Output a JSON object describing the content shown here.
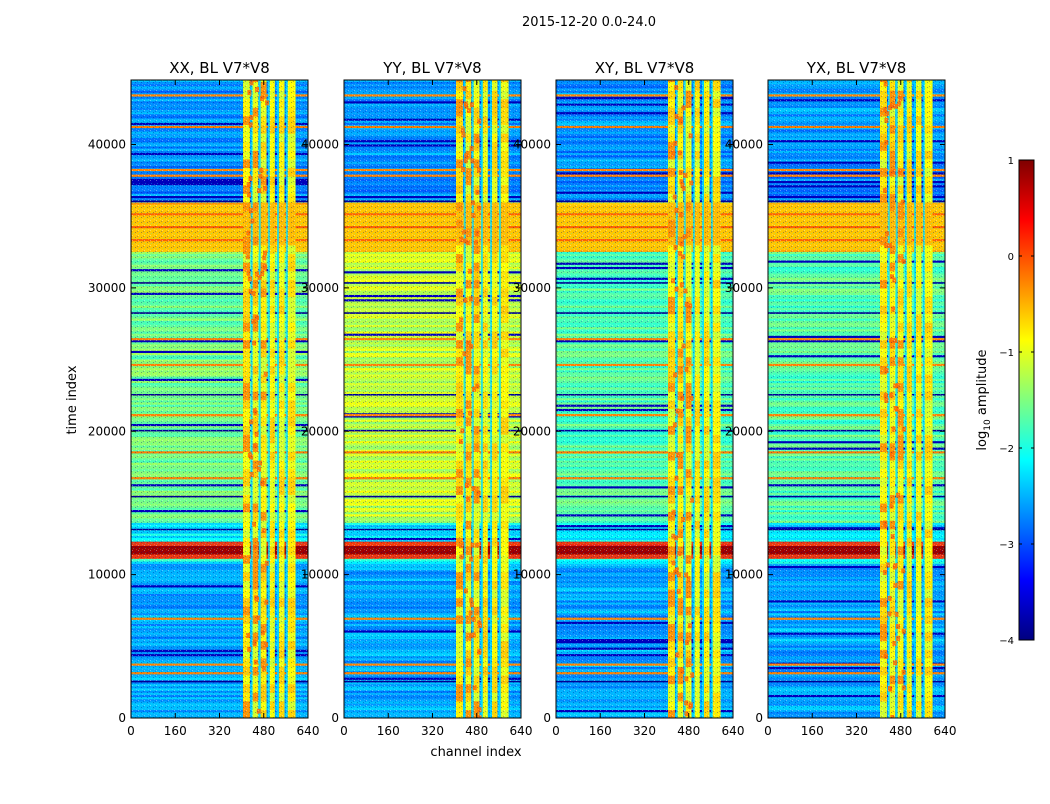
{
  "chart_data": {
    "type": "heatmap",
    "suptitle": "2015-12-20 0.0-24.0",
    "xlabel": "channel index",
    "ylabel": "time index",
    "xlim": [
      0,
      640
    ],
    "ylim": [
      0,
      44500
    ],
    "xticks": [
      0,
      160,
      320,
      480,
      640
    ],
    "yticks": [
      0,
      10000,
      20000,
      30000,
      40000
    ],
    "panels": [
      {
        "title": "XX, BL V7*V8",
        "pol": "XX"
      },
      {
        "title": "YY, BL V7*V8",
        "pol": "YY"
      },
      {
        "title": "XY, BL V7*V8",
        "pol": "XY"
      },
      {
        "title": "YX, BL V7*V8",
        "pol": "YX"
      }
    ],
    "colorbar": {
      "label": "log10 amplitude",
      "label_prefix": "log",
      "label_sub": "10",
      "label_suffix": " amplitude",
      "range": [
        -4,
        1
      ],
      "ticks": [
        -4,
        -3,
        -2,
        -1,
        0,
        1
      ],
      "tick_labels": [
        "−4",
        "−3",
        "−2",
        "−1",
        "0",
        "1"
      ],
      "colormap": "jet"
    },
    "features": {
      "rfi_channel_band": [
        405,
        600
      ],
      "flagged_block_time": [
        32700,
        35800
      ],
      "strong_source_time": [
        11100,
        12300
      ]
    }
  }
}
